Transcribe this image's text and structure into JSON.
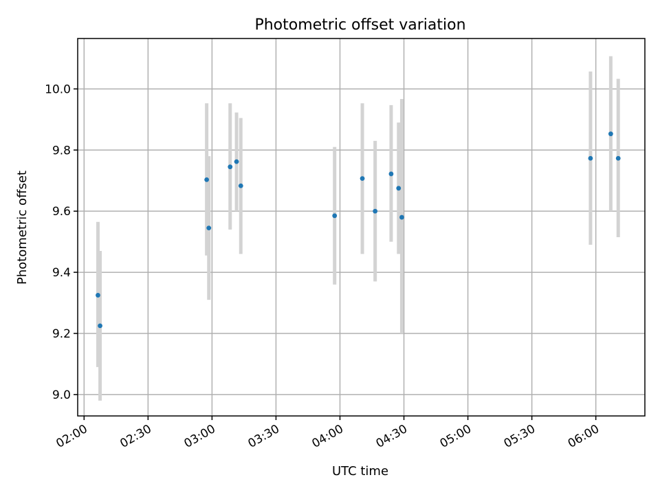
{
  "chart_data": {
    "type": "scatter",
    "title": "Photometric offset variation",
    "xlabel": "UTC time",
    "ylabel": "Photometric offset",
    "xlim": [
      "01:57",
      "06:23"
    ],
    "ylim": [
      8.93,
      10.165
    ],
    "x_ticks": [
      "02:00",
      "02:30",
      "03:00",
      "03:30",
      "04:00",
      "04:30",
      "05:00",
      "05:30",
      "06:00"
    ],
    "y_ticks": [
      "9.0",
      "9.2",
      "9.4",
      "9.6",
      "9.8",
      "10.0"
    ],
    "grid": true,
    "colors": {
      "point": "#1f77b4",
      "errorbar": "#d3d3d3"
    },
    "series": [
      {
        "points": [
          {
            "x": "02:06:30",
            "y": 9.325,
            "y_low": 9.09,
            "y_high": 9.565
          },
          {
            "x": "02:07:30",
            "y": 9.225,
            "y_low": 8.98,
            "y_high": 9.47
          },
          {
            "x": "02:57:30",
            "y": 9.703,
            "y_low": 9.455,
            "y_high": 9.953
          },
          {
            "x": "02:58:30",
            "y": 9.545,
            "y_low": 9.31,
            "y_high": 9.78
          },
          {
            "x": "03:08:30",
            "y": 9.745,
            "y_low": 9.54,
            "y_high": 9.953
          },
          {
            "x": "03:11:30",
            "y": 9.762,
            "y_low": 9.6,
            "y_high": 9.923
          },
          {
            "x": "03:13:30",
            "y": 9.683,
            "y_low": 9.46,
            "y_high": 9.905
          },
          {
            "x": "03:57:30",
            "y": 9.585,
            "y_low": 9.36,
            "y_high": 9.81
          },
          {
            "x": "04:10:30",
            "y": 9.707,
            "y_low": 9.46,
            "y_high": 9.953
          },
          {
            "x": "04:16:30",
            "y": 9.6,
            "y_low": 9.37,
            "y_high": 9.83
          },
          {
            "x": "04:24:00",
            "y": 9.722,
            "y_low": 9.5,
            "y_high": 9.947
          },
          {
            "x": "04:27:30",
            "y": 9.675,
            "y_low": 9.46,
            "y_high": 9.89
          },
          {
            "x": "04:29:00",
            "y": 9.58,
            "y_low": 9.2,
            "y_high": 9.967
          },
          {
            "x": "05:57:30",
            "y": 9.773,
            "y_low": 9.49,
            "y_high": 10.057
          },
          {
            "x": "06:07:00",
            "y": 9.853,
            "y_low": 9.6,
            "y_high": 10.107
          },
          {
            "x": "06:10:30",
            "y": 9.773,
            "y_low": 9.515,
            "y_high": 10.033
          }
        ]
      }
    ]
  }
}
